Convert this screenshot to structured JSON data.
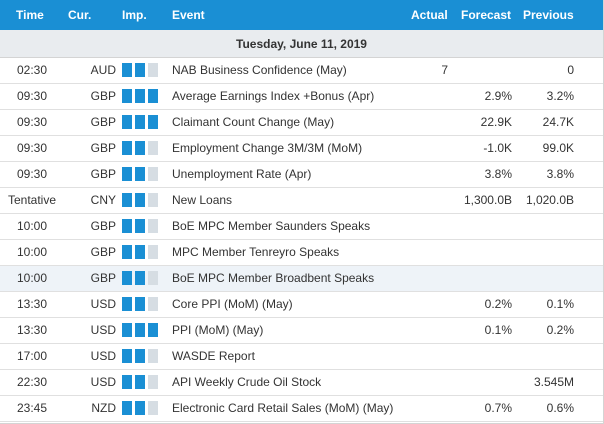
{
  "header": {
    "time": "Time",
    "currency": "Cur.",
    "importance": "Imp.",
    "event": "Event",
    "actual": "Actual",
    "forecast": "Forecast",
    "previous": "Previous"
  },
  "date": "Tuesday, June 11, 2019",
  "colors": {
    "header_bg": "#1a8fd4",
    "impact_on": "#1a8fd4",
    "impact_off": "#d6dde3",
    "highlight_row": "#eef3f8"
  },
  "icons": {
    "impact": "impact-bar-icon"
  },
  "rows": [
    {
      "time": "02:30",
      "currency": "AUD",
      "impact": 2,
      "event": "NAB Business Confidence (May)",
      "actual": "7",
      "forecast": "",
      "previous": "0"
    },
    {
      "time": "09:30",
      "currency": "GBP",
      "impact": 3,
      "event": "Average Earnings Index +Bonus (Apr)",
      "actual": "",
      "forecast": "2.9%",
      "previous": "3.2%"
    },
    {
      "time": "09:30",
      "currency": "GBP",
      "impact": 3,
      "event": "Claimant Count Change (May)",
      "actual": "",
      "forecast": "22.9K",
      "previous": "24.7K"
    },
    {
      "time": "09:30",
      "currency": "GBP",
      "impact": 2,
      "event": "Employment Change 3M/3M (MoM)",
      "actual": "",
      "forecast": "-1.0K",
      "previous": "99.0K"
    },
    {
      "time": "09:30",
      "currency": "GBP",
      "impact": 2,
      "event": "Unemployment Rate (Apr)",
      "actual": "",
      "forecast": "3.8%",
      "previous": "3.8%"
    },
    {
      "time": "Tentative",
      "currency": "CNY",
      "impact": 2,
      "event": "New Loans",
      "actual": "",
      "forecast": "1,300.0B",
      "previous": "1,020.0B"
    },
    {
      "time": "10:00",
      "currency": "GBP",
      "impact": 2,
      "event": "BoE MPC Member Saunders Speaks",
      "actual": "",
      "forecast": "",
      "previous": ""
    },
    {
      "time": "10:00",
      "currency": "GBP",
      "impact": 2,
      "event": "MPC Member Tenreyro Speaks",
      "actual": "",
      "forecast": "",
      "previous": ""
    },
    {
      "time": "10:00",
      "currency": "GBP",
      "impact": 2,
      "event": "BoE MPC Member Broadbent Speaks",
      "actual": "",
      "forecast": "",
      "previous": "",
      "highlighted": true
    },
    {
      "time": "13:30",
      "currency": "USD",
      "impact": 2,
      "event": "Core PPI (MoM) (May)",
      "actual": "",
      "forecast": "0.2%",
      "previous": "0.1%"
    },
    {
      "time": "13:30",
      "currency": "USD",
      "impact": 3,
      "event": "PPI (MoM) (May)",
      "actual": "",
      "forecast": "0.1%",
      "previous": "0.2%"
    },
    {
      "time": "17:00",
      "currency": "USD",
      "impact": 2,
      "event": "WASDE Report",
      "actual": "",
      "forecast": "",
      "previous": ""
    },
    {
      "time": "22:30",
      "currency": "USD",
      "impact": 2,
      "event": "API Weekly Crude Oil Stock",
      "actual": "",
      "forecast": "",
      "previous": "3.545M"
    },
    {
      "time": "23:45",
      "currency": "NZD",
      "impact": 2,
      "event": "Electronic Card Retail Sales (MoM) (May)",
      "actual": "",
      "forecast": "0.7%",
      "previous": "0.6%"
    }
  ]
}
